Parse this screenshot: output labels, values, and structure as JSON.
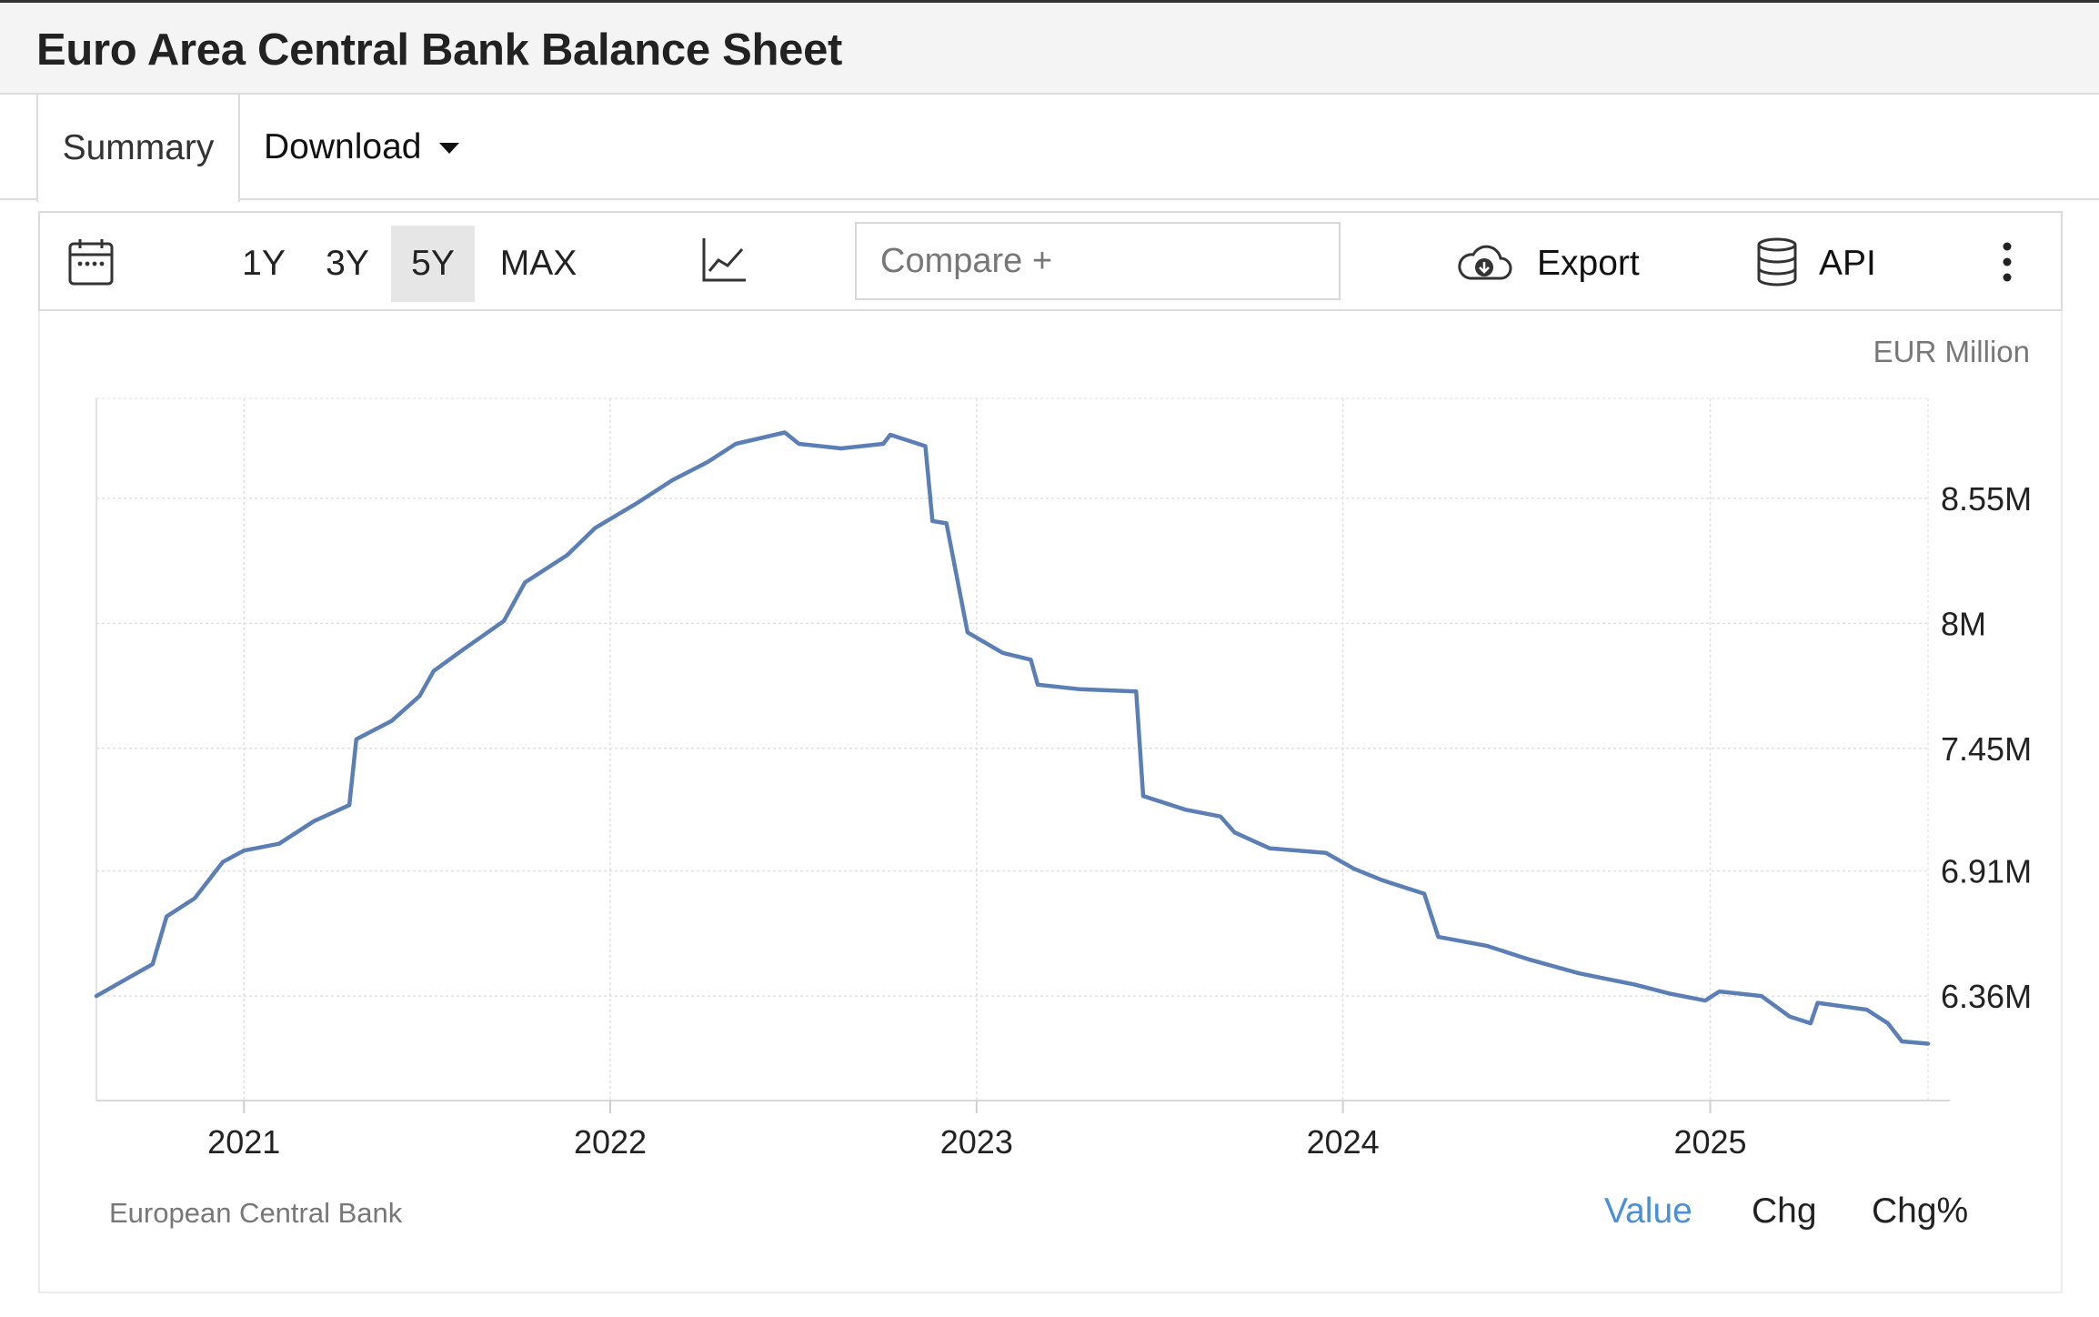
{
  "header": {
    "title": "Euro Area Central Bank Balance Sheet"
  },
  "tabs": {
    "summary_label": "Summary",
    "download_label": "Download"
  },
  "toolbar": {
    "ranges": [
      "1Y",
      "3Y",
      "5Y",
      "MAX"
    ],
    "active_range": "5Y",
    "compare_placeholder": "Compare +",
    "export_label": "Export",
    "api_label": "API",
    "icons": [
      "calendar-icon",
      "line-chart-icon",
      "cloud-download-icon",
      "database-icon",
      "more-vertical-icon"
    ]
  },
  "footer": {
    "source": "European Central Bank",
    "modes": [
      "Value",
      "Chg",
      "Chg%"
    ],
    "active_mode": "Value"
  },
  "colors": {
    "line": "#5b7fb5",
    "active_mode": "#4a90d9"
  },
  "chart_data": {
    "type": "line",
    "title": "",
    "unit_label": "EUR Million",
    "xlabel": "",
    "ylabel": "",
    "x_ticks": [
      "2021",
      "2022",
      "2023",
      "2024",
      "2025"
    ],
    "y_ticks": [
      "8.55M",
      "8M",
      "7.45M",
      "6.91M",
      "6.36M"
    ],
    "y_tick_values": [
      8550000,
      8000000,
      7450000,
      6910000,
      6360000
    ],
    "ylim": [
      5900000,
      8990000
    ],
    "xlim": [
      "2020-08-07",
      "2025-08-06"
    ],
    "grid": true,
    "series": [
      {
        "name": "",
        "points": [
          [
            "2020-08-07",
            6360000
          ],
          [
            "2020-10-02",
            6500000
          ],
          [
            "2020-10-16",
            6710000
          ],
          [
            "2020-11-13",
            6790000
          ],
          [
            "2020-12-11",
            6950000
          ],
          [
            "2021-01-01",
            7000000
          ],
          [
            "2021-02-05",
            7030000
          ],
          [
            "2021-03-12",
            7130000
          ],
          [
            "2021-04-16",
            7200000
          ],
          [
            "2021-04-23",
            7490000
          ],
          [
            "2021-05-28",
            7570000
          ],
          [
            "2021-06-25",
            7680000
          ],
          [
            "2021-07-09",
            7790000
          ],
          [
            "2021-08-06",
            7880000
          ],
          [
            "2021-09-17",
            8010000
          ],
          [
            "2021-10-08",
            8180000
          ],
          [
            "2021-11-19",
            8300000
          ],
          [
            "2021-12-17",
            8420000
          ],
          [
            "2022-01-28",
            8530000
          ],
          [
            "2022-03-04",
            8630000
          ],
          [
            "2022-04-08",
            8710000
          ],
          [
            "2022-05-06",
            8790000
          ],
          [
            "2022-06-24",
            8840000
          ],
          [
            "2022-07-08",
            8790000
          ],
          [
            "2022-08-19",
            8770000
          ],
          [
            "2022-09-30",
            8790000
          ],
          [
            "2022-10-07",
            8830000
          ],
          [
            "2022-11-11",
            8780000
          ],
          [
            "2022-11-18",
            8450000
          ],
          [
            "2022-12-02",
            8440000
          ],
          [
            "2022-12-23",
            7960000
          ],
          [
            "2023-01-27",
            7870000
          ],
          [
            "2023-02-24",
            7840000
          ],
          [
            "2023-03-03",
            7730000
          ],
          [
            "2023-04-14",
            7710000
          ],
          [
            "2023-06-09",
            7700000
          ],
          [
            "2023-06-16",
            7240000
          ],
          [
            "2023-07-28",
            7180000
          ],
          [
            "2023-09-01",
            7150000
          ],
          [
            "2023-09-15",
            7080000
          ],
          [
            "2023-10-20",
            7010000
          ],
          [
            "2023-12-15",
            6990000
          ],
          [
            "2024-01-12",
            6920000
          ],
          [
            "2024-02-09",
            6870000
          ],
          [
            "2024-03-22",
            6810000
          ],
          [
            "2024-04-05",
            6620000
          ],
          [
            "2024-05-24",
            6580000
          ],
          [
            "2024-07-05",
            6520000
          ],
          [
            "2024-08-23",
            6460000
          ],
          [
            "2024-10-18",
            6410000
          ],
          [
            "2024-11-22",
            6370000
          ],
          [
            "2024-12-27",
            6340000
          ],
          [
            "2025-01-10",
            6380000
          ],
          [
            "2025-02-21",
            6360000
          ],
          [
            "2025-03-21",
            6270000
          ],
          [
            "2025-04-11",
            6240000
          ],
          [
            "2025-04-18",
            6330000
          ],
          [
            "2025-06-06",
            6300000
          ],
          [
            "2025-06-27",
            6240000
          ],
          [
            "2025-07-11",
            6160000
          ],
          [
            "2025-08-06",
            6150000
          ]
        ]
      }
    ]
  }
}
